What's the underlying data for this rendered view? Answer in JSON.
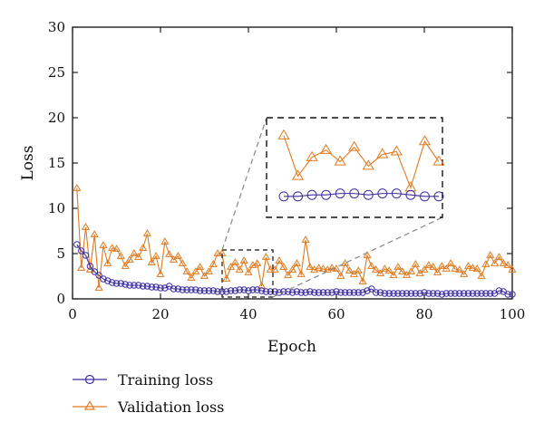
{
  "chart_data": {
    "type": "line",
    "xlabel": "Epoch",
    "ylabel": "Loss",
    "xlim": [
      0,
      100
    ],
    "ylim": [
      0,
      30
    ],
    "xticks": [
      0,
      20,
      40,
      60,
      80,
      100
    ],
    "yticks": [
      0,
      5,
      10,
      15,
      20,
      25,
      30
    ],
    "grid": false,
    "legend_position": "bottom-left, below plot",
    "inset": {
      "type": "zoom",
      "source_x_range": [
        34,
        45
      ],
      "source_y_range": [
        0.1,
        5.3
      ]
    },
    "series": [
      {
        "name": "Training loss",
        "color": "#3b2fa0",
        "marker": "circle",
        "x": [
          1,
          2,
          3,
          4,
          5,
          6,
          7,
          8,
          9,
          10,
          11,
          12,
          13,
          14,
          15,
          16,
          17,
          18,
          19,
          20,
          21,
          22,
          23,
          24,
          25,
          26,
          27,
          28,
          29,
          30,
          31,
          32,
          33,
          34,
          35,
          36,
          37,
          38,
          39,
          40,
          41,
          42,
          43,
          44,
          45,
          46,
          47,
          48,
          49,
          50,
          51,
          52,
          53,
          54,
          55,
          56,
          57,
          58,
          59,
          60,
          61,
          62,
          63,
          64,
          65,
          66,
          67,
          68,
          69,
          70,
          71,
          72,
          73,
          74,
          75,
          76,
          77,
          78,
          79,
          80,
          81,
          82,
          83,
          84,
          85,
          86,
          87,
          88,
          89,
          90,
          91,
          92,
          93,
          94,
          95,
          96,
          97,
          98,
          99,
          100
        ],
        "values": [
          6.0,
          5.3,
          4.8,
          3.6,
          3.0,
          2.6,
          2.2,
          2.0,
          1.8,
          1.7,
          1.7,
          1.6,
          1.5,
          1.5,
          1.5,
          1.4,
          1.4,
          1.3,
          1.3,
          1.2,
          1.2,
          1.4,
          1.1,
          1.1,
          1.0,
          1.0,
          1.0,
          1.0,
          0.9,
          0.9,
          0.9,
          0.9,
          0.8,
          0.8,
          0.8,
          0.9,
          0.9,
          1.0,
          1.0,
          0.9,
          1.0,
          1.0,
          0.9,
          0.8,
          0.8,
          0.8,
          0.7,
          0.8,
          0.8,
          0.7,
          0.8,
          0.7,
          0.7,
          0.8,
          0.7,
          0.7,
          0.7,
          0.7,
          0.7,
          0.8,
          0.7,
          0.7,
          0.7,
          0.7,
          0.7,
          0.7,
          0.9,
          1.1,
          0.7,
          0.7,
          0.6,
          0.6,
          0.6,
          0.6,
          0.6,
          0.6,
          0.6,
          0.6,
          0.6,
          0.7,
          0.6,
          0.6,
          0.6,
          0.5,
          0.6,
          0.6,
          0.6,
          0.6,
          0.6,
          0.6,
          0.6,
          0.6,
          0.6,
          0.6,
          0.6,
          0.6,
          0.9,
          0.8,
          0.5,
          0.5
        ]
      },
      {
        "name": "Validation loss",
        "color": "#e07a1f",
        "marker": "triangle",
        "x": [
          1,
          2,
          3,
          4,
          5,
          6,
          7,
          8,
          9,
          10,
          11,
          12,
          13,
          14,
          15,
          16,
          17,
          18,
          19,
          20,
          21,
          22,
          23,
          24,
          25,
          26,
          27,
          28,
          29,
          30,
          31,
          32,
          33,
          34,
          35,
          36,
          37,
          38,
          39,
          40,
          41,
          42,
          43,
          44,
          45,
          46,
          47,
          48,
          49,
          50,
          51,
          52,
          53,
          54,
          55,
          56,
          57,
          58,
          59,
          60,
          61,
          62,
          63,
          64,
          65,
          66,
          67,
          68,
          69,
          70,
          71,
          72,
          73,
          74,
          75,
          76,
          77,
          78,
          79,
          80,
          81,
          82,
          83,
          84,
          85,
          86,
          87,
          88,
          89,
          90,
          91,
          92,
          93,
          94,
          95,
          96,
          97,
          98,
          99,
          100
        ],
        "values": [
          12.2,
          3.4,
          7.9,
          3.2,
          7.1,
          1.2,
          5.9,
          3.9,
          5.6,
          5.5,
          4.7,
          3.6,
          4.3,
          5.0,
          4.6,
          5.6,
          7.2,
          4.0,
          4.7,
          2.7,
          6.3,
          4.9,
          4.3,
          4.7,
          3.9,
          3.0,
          2.3,
          3.0,
          3.5,
          2.5,
          3.0,
          3.8,
          5.0,
          5.0,
          2.2,
          3.5,
          4.0,
          3.2,
          4.2,
          2.9,
          3.7,
          3.9,
          1.4,
          4.6,
          3.2,
          3.2,
          4.2,
          3.5,
          2.6,
          3.2,
          3.9,
          2.7,
          6.5,
          3.5,
          3.2,
          3.4,
          3.3,
          3.2,
          3.4,
          3.3,
          2.5,
          3.9,
          3.1,
          2.7,
          3.1,
          1.9,
          4.8,
          3.6,
          3.2,
          2.8,
          3.3,
          3.1,
          2.6,
          3.5,
          3.0,
          2.6,
          3.0,
          3.8,
          2.8,
          3.2,
          3.7,
          3.5,
          2.9,
          3.6,
          3.3,
          3.9,
          3.3,
          3.2,
          2.7,
          3.6,
          3.4,
          3.3,
          2.5,
          3.8,
          4.8,
          3.9,
          4.6,
          3.9,
          3.7,
          3.2
        ]
      }
    ]
  }
}
